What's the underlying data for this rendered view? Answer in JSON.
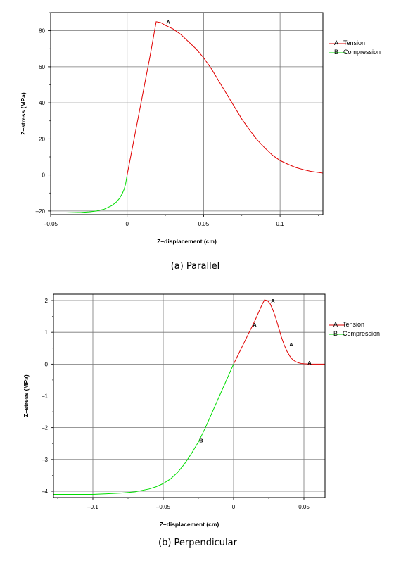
{
  "chart_data": [
    {
      "type": "line",
      "caption": "(a) Parallel",
      "xlabel": "Z–displacement (cm)",
      "ylabel": "Z–stress (MPa)",
      "xlim": [
        -0.05,
        0.128
      ],
      "ylim": [
        -22,
        90
      ],
      "xticks": [
        -0.05,
        0,
        0.05,
        0.1
      ],
      "xtick_labels": [
        "–0.05",
        "0",
        "0.05",
        "0.1"
      ],
      "yticks": [
        -20,
        0,
        20,
        40,
        60,
        80
      ],
      "ytick_labels": [
        "–20",
        "0",
        "20",
        "40",
        "60",
        "80"
      ],
      "grid": true,
      "legend_position": "right",
      "series": [
        {
          "name": "Tension",
          "marker": "A",
          "color": "#e00000",
          "x": [
            0,
            0.005,
            0.01,
            0.015,
            0.019,
            0.022,
            0.025,
            0.03,
            0.035,
            0.04,
            0.045,
            0.05,
            0.055,
            0.06,
            0.065,
            0.07,
            0.075,
            0.08,
            0.085,
            0.09,
            0.095,
            0.1,
            0.105,
            0.11,
            0.115,
            0.12,
            0.128
          ],
          "y": [
            0,
            22,
            44,
            66,
            85,
            84.5,
            83,
            81,
            78,
            74,
            70,
            65,
            59,
            52,
            45,
            38,
            31,
            25,
            19.5,
            15,
            11,
            8,
            6,
            4.2,
            3,
            2,
            1
          ],
          "label_points": [
            {
              "x": 0.026,
              "y": 85
            }
          ]
        },
        {
          "name": "Compression",
          "marker": "B",
          "color": "#00dd00",
          "x": [
            -0.05,
            -0.04,
            -0.03,
            -0.025,
            -0.02,
            -0.015,
            -0.01,
            -0.007,
            -0.005,
            -0.003,
            -0.002,
            -0.001,
            0
          ],
          "y": [
            -21,
            -21,
            -20.8,
            -20.5,
            -20,
            -19,
            -17,
            -15,
            -13,
            -10,
            -8,
            -5,
            0
          ],
          "label_points": []
        }
      ]
    },
    {
      "type": "line",
      "caption": "(b) Perpendicular",
      "xlabel": "Z–displacement (cm)",
      "ylabel": "Z–stress (MPa)",
      "xlim": [
        -0.128,
        0.065
      ],
      "ylim": [
        -4.2,
        2.2
      ],
      "xticks": [
        -0.1,
        -0.05,
        0,
        0.05
      ],
      "xtick_labels": [
        "–0.1",
        "–0.05",
        "0",
        "0.05"
      ],
      "yticks": [
        -4,
        -3,
        -2,
        -1,
        0,
        1,
        2
      ],
      "ytick_labels": [
        "–4",
        "–3",
        "–2",
        "–1",
        "0",
        "1",
        "2"
      ],
      "grid": true,
      "legend_position": "right",
      "series": [
        {
          "name": "Tension",
          "marker": "A",
          "color": "#e00000",
          "x": [
            0,
            0.005,
            0.01,
            0.015,
            0.02,
            0.022,
            0.024,
            0.026,
            0.028,
            0.03,
            0.032,
            0.034,
            0.036,
            0.038,
            0.04,
            0.042,
            0.044,
            0.046,
            0.048,
            0.05,
            0.055,
            0.065
          ],
          "y": [
            0,
            0.45,
            0.9,
            1.35,
            1.85,
            2.02,
            2.0,
            1.9,
            1.7,
            1.45,
            1.15,
            0.85,
            0.6,
            0.4,
            0.25,
            0.14,
            0.08,
            0.04,
            0.02,
            0.01,
            0,
            0
          ],
          "label_points": [
            {
              "x": 0.014,
              "y": 1.25
            },
            {
              "x": 0.027,
              "y": 2.0
            },
            {
              "x": 0.04,
              "y": 0.63
            },
            {
              "x": 0.053,
              "y": 0.05
            }
          ]
        },
        {
          "name": "Compression",
          "marker": "B",
          "color": "#00dd00",
          "x": [
            -0.128,
            -0.1,
            -0.09,
            -0.08,
            -0.07,
            -0.06,
            -0.055,
            -0.05,
            -0.045,
            -0.04,
            -0.035,
            -0.03,
            -0.025,
            -0.02,
            -0.015,
            -0.01,
            -0.005,
            0
          ],
          "y": [
            -4.1,
            -4.1,
            -4.08,
            -4.06,
            -4.02,
            -3.93,
            -3.86,
            -3.76,
            -3.62,
            -3.42,
            -3.15,
            -2.82,
            -2.45,
            -2.0,
            -1.5,
            -1.0,
            -0.5,
            0
          ],
          "label_points": [
            {
              "x": -0.024,
              "y": -2.4
            }
          ]
        }
      ]
    }
  ]
}
